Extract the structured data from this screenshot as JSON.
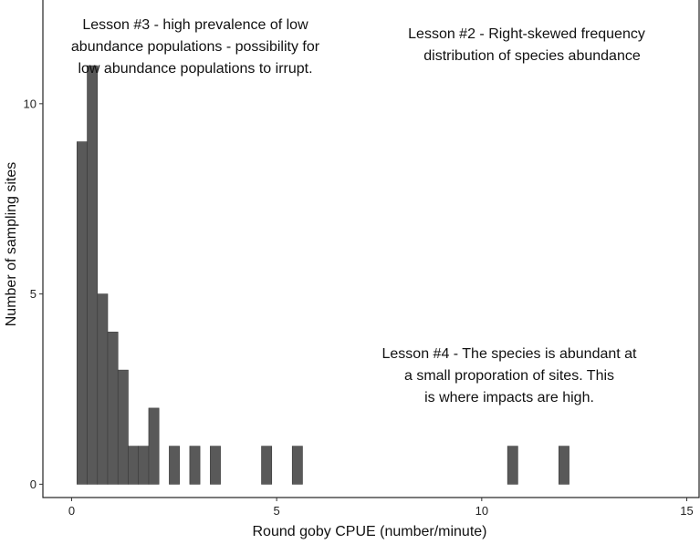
{
  "chart_data": {
    "type": "bar",
    "title": "",
    "xlabel": "Round goby CPUE (number/minute)",
    "ylabel": "Number of sampling sites",
    "xlim": [
      -0.7,
      15.3
    ],
    "ylim": [
      -0.35,
      12.75
    ],
    "x_ticks": [
      0,
      5,
      10,
      15
    ],
    "y_ticks": [
      0,
      5,
      10
    ],
    "bin_width": 0.25,
    "bins": [
      {
        "start": 0.13,
        "count": 9
      },
      {
        "start": 0.38,
        "count": 11
      },
      {
        "start": 0.63,
        "count": 5
      },
      {
        "start": 0.88,
        "count": 4
      },
      {
        "start": 1.13,
        "count": 3
      },
      {
        "start": 1.38,
        "count": 1
      },
      {
        "start": 1.63,
        "count": 1
      },
      {
        "start": 1.88,
        "count": 2
      },
      {
        "start": 2.38,
        "count": 1
      },
      {
        "start": 2.88,
        "count": 1
      },
      {
        "start": 3.38,
        "count": 1
      },
      {
        "start": 4.63,
        "count": 1
      },
      {
        "start": 5.38,
        "count": 1
      },
      {
        "start": 10.63,
        "count": 1
      },
      {
        "start": 11.88,
        "count": 1
      }
    ],
    "bar_color": "#595959",
    "grid": false,
    "annotations": [
      {
        "id": "lesson3",
        "lines": [
          "Lesson #3 - high prevalence of low",
          "abundance populations - possibility for",
          "low abundance populations to irrupt."
        ]
      },
      {
        "id": "lesson2",
        "lines": [
          "Lesson #2 - Right-skewed frequency",
          "distribution of species abundance"
        ]
      },
      {
        "id": "lesson4",
        "lines": [
          "Lesson #4 - The species is abundant at",
          "a small proporation of sites. This",
          "is where impacts are high."
        ]
      }
    ]
  }
}
